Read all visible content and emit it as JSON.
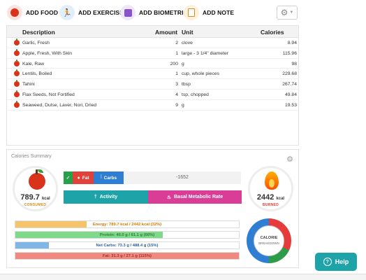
{
  "toolbar": {
    "add_food": "ADD FOOD",
    "add_exercise": "ADD EXERCISE",
    "add_biometric": "ADD BIOMETRIC",
    "add_note": "ADD NOTE"
  },
  "table": {
    "headers": {
      "description": "Description",
      "amount": "Amount",
      "unit": "Unit",
      "calories": "Calories"
    },
    "rows": [
      {
        "description": "Garlic, Fresh",
        "amount": "2",
        "unit": "clove",
        "calories": "8.94"
      },
      {
        "description": "Apple, Fresh, With Skin",
        "amount": "1",
        "unit": "large - 3 1/4\" diameter",
        "calories": "115.96"
      },
      {
        "description": "Kale, Raw",
        "amount": "200",
        "unit": "g",
        "calories": "98"
      },
      {
        "description": "Lentils, Boiled",
        "amount": "1",
        "unit": "cup, whole pieces",
        "calories": "229.68"
      },
      {
        "description": "Tahini",
        "amount": "3",
        "unit": "tbsp",
        "calories": "267.74"
      },
      {
        "description": "Flax Seeds, Not Fortified",
        "amount": "4",
        "unit": "tsp, chopped",
        "calories": "49.84"
      },
      {
        "description": "Seaweed, Dulse, Laver, Nori, Dried",
        "amount": "9",
        "unit": "g",
        "calories": "19.53"
      }
    ]
  },
  "summary": {
    "title": "Calories Summary",
    "consumed": {
      "value": "789.7",
      "unit": "kcal",
      "label": "CONSUMED"
    },
    "burned": {
      "value": "2442",
      "unit": "kcal",
      "label": "BURNED"
    },
    "macro_buttons": {
      "fat": "Fat",
      "carbs": "Carbs"
    },
    "difference": "-1652",
    "activity": "Activity",
    "bmr": "Basal Metabolic Rate",
    "bars": [
      {
        "text": "Energy: 789.7 kcal / 2442 kcal (32%)",
        "percent": 32,
        "color": "#f5c46a",
        "text_color": "#d97a00"
      },
      {
        "text": "Protein: 40.0 g / 61.1 g (66%)",
        "percent": 66,
        "color": "#7fd98a",
        "text_color": "#2f7d3a"
      },
      {
        "text": "Net Carbs: 73.3 g / 488.4 g (15%)",
        "percent": 15,
        "color": "#7fb6e6",
        "text_color": "#2b5f99"
      },
      {
        "text": "Fat: 31.3 g / 27.1 g (115%)",
        "percent": 100,
        "color": "#f08a80",
        "text_color": "#a0302a"
      }
    ],
    "breakdown": {
      "line1": "CALORIE",
      "line2": "BREAKDOWN"
    }
  },
  "help": {
    "label": "Help"
  },
  "colors": {
    "accent": "#1ea3a8",
    "bmr": "#d93d96",
    "apple": "#d9331c"
  }
}
